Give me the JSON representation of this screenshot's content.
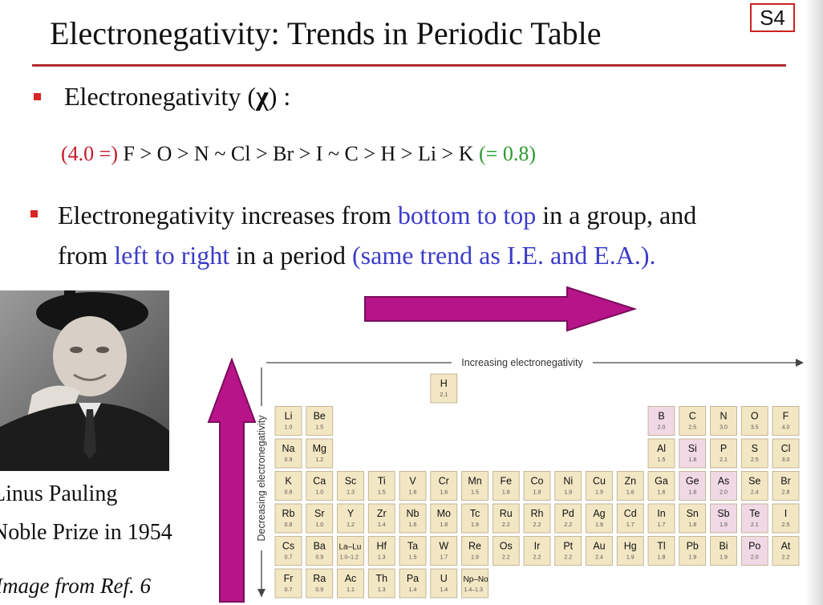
{
  "slide_number": "S4",
  "title": "Electronegativity: Trends in Periodic Table",
  "bullet1": {
    "label": "Electronegativity (",
    "symbol": "χ",
    "suffix": ")  :"
  },
  "series": {
    "start": "(4.0 =)",
    "sequence": " F > O > N ~ Cl > Br > I ~  C > H > Li > K ",
    "end": "(= 0.8)"
  },
  "bullet2": {
    "p1": "Electronegativity increases from ",
    "p2": "bottom to top",
    "p3": " in a group, and",
    "p4": "from ",
    "p5": "left to right",
    "p6": " in a period ",
    "p7": "(same trend as I.E. and E.A.)."
  },
  "portrait": {
    "caption_name": "Linus Pauling",
    "caption_prize": "Noble Prize in 1954",
    "caption_source": "Image from Ref. 6"
  },
  "table": {
    "x_axis_label": "Increasing electronegativity",
    "y_axis_label": "Decreasing electronegativity",
    "colors": {
      "main": "#f3e6c3",
      "pink": "#f0d8e4",
      "border": "#b9a988",
      "arrow": "#b8148a"
    },
    "elements": [
      {
        "sym": "H",
        "en": "2.1",
        "row": 0,
        "col": 5,
        "color": "main"
      },
      {
        "sym": "Li",
        "en": "1.0",
        "row": 1,
        "col": 0,
        "color": "main"
      },
      {
        "sym": "Be",
        "en": "1.5",
        "row": 1,
        "col": 1,
        "color": "main"
      },
      {
        "sym": "B",
        "en": "2.0",
        "row": 1,
        "col": 12,
        "color": "pink"
      },
      {
        "sym": "C",
        "en": "2.5",
        "row": 1,
        "col": 13,
        "color": "main"
      },
      {
        "sym": "N",
        "en": "3.0",
        "row": 1,
        "col": 14,
        "color": "main"
      },
      {
        "sym": "O",
        "en": "3.5",
        "row": 1,
        "col": 15,
        "color": "main"
      },
      {
        "sym": "F",
        "en": "4.0",
        "row": 1,
        "col": 16,
        "color": "main"
      },
      {
        "sym": "Na",
        "en": "0.9",
        "row": 2,
        "col": 0,
        "color": "main"
      },
      {
        "sym": "Mg",
        "en": "1.2",
        "row": 2,
        "col": 1,
        "color": "main"
      },
      {
        "sym": "Al",
        "en": "1.5",
        "row": 2,
        "col": 12,
        "color": "main"
      },
      {
        "sym": "Si",
        "en": "1.8",
        "row": 2,
        "col": 13,
        "color": "pink"
      },
      {
        "sym": "P",
        "en": "2.1",
        "row": 2,
        "col": 14,
        "color": "main"
      },
      {
        "sym": "S",
        "en": "2.5",
        "row": 2,
        "col": 15,
        "color": "main"
      },
      {
        "sym": "Cl",
        "en": "3.0",
        "row": 2,
        "col": 16,
        "color": "main"
      },
      {
        "sym": "K",
        "en": "0.8",
        "row": 3,
        "col": 0,
        "color": "main"
      },
      {
        "sym": "Ca",
        "en": "1.0",
        "row": 3,
        "col": 1,
        "color": "main"
      },
      {
        "sym": "Sc",
        "en": "1.3",
        "row": 3,
        "col": 2,
        "color": "main"
      },
      {
        "sym": "Ti",
        "en": "1.5",
        "row": 3,
        "col": 3,
        "color": "main"
      },
      {
        "sym": "V",
        "en": "1.6",
        "row": 3,
        "col": 4,
        "color": "main"
      },
      {
        "sym": "Cr",
        "en": "1.6",
        "row": 3,
        "col": 5,
        "color": "main"
      },
      {
        "sym": "Mn",
        "en": "1.5",
        "row": 3,
        "col": 6,
        "color": "main"
      },
      {
        "sym": "Fe",
        "en": "1.8",
        "row": 3,
        "col": 7,
        "color": "main"
      },
      {
        "sym": "Co",
        "en": "1.9",
        "row": 3,
        "col": 8,
        "color": "main"
      },
      {
        "sym": "Ni",
        "en": "1.9",
        "row": 3,
        "col": 9,
        "color": "main"
      },
      {
        "sym": "Cu",
        "en": "1.9",
        "row": 3,
        "col": 10,
        "color": "main"
      },
      {
        "sym": "Zn",
        "en": "1.6",
        "row": 3,
        "col": 11,
        "color": "main"
      },
      {
        "sym": "Ga",
        "en": "1.6",
        "row": 3,
        "col": 12,
        "color": "main"
      },
      {
        "sym": "Ge",
        "en": "1.8",
        "row": 3,
        "col": 13,
        "color": "pink"
      },
      {
        "sym": "As",
        "en": "2.0",
        "row": 3,
        "col": 14,
        "color": "pink"
      },
      {
        "sym": "Se",
        "en": "2.4",
        "row": 3,
        "col": 15,
        "color": "main"
      },
      {
        "sym": "Br",
        "en": "2.8",
        "row": 3,
        "col": 16,
        "color": "main"
      },
      {
        "sym": "Rb",
        "en": "0.8",
        "row": 4,
        "col": 0,
        "color": "main"
      },
      {
        "sym": "Sr",
        "en": "1.0",
        "row": 4,
        "col": 1,
        "color": "main"
      },
      {
        "sym": "Y",
        "en": "1.2",
        "row": 4,
        "col": 2,
        "color": "main"
      },
      {
        "sym": "Zr",
        "en": "1.4",
        "row": 4,
        "col": 3,
        "color": "main"
      },
      {
        "sym": "Nb",
        "en": "1.6",
        "row": 4,
        "col": 4,
        "color": "main"
      },
      {
        "sym": "Mo",
        "en": "1.8",
        "row": 4,
        "col": 5,
        "color": "main"
      },
      {
        "sym": "Tc",
        "en": "1.9",
        "row": 4,
        "col": 6,
        "color": "main"
      },
      {
        "sym": "Ru",
        "en": "2.2",
        "row": 4,
        "col": 7,
        "color": "main"
      },
      {
        "sym": "Rh",
        "en": "2.2",
        "row": 4,
        "col": 8,
        "color": "main"
      },
      {
        "sym": "Pd",
        "en": "2.2",
        "row": 4,
        "col": 9,
        "color": "main"
      },
      {
        "sym": "Ag",
        "en": "1.9",
        "row": 4,
        "col": 10,
        "color": "main"
      },
      {
        "sym": "Cd",
        "en": "1.7",
        "row": 4,
        "col": 11,
        "color": "main"
      },
      {
        "sym": "In",
        "en": "1.7",
        "row": 4,
        "col": 12,
        "color": "main"
      },
      {
        "sym": "Sn",
        "en": "1.8",
        "row": 4,
        "col": 13,
        "color": "main"
      },
      {
        "sym": "Sb",
        "en": "1.9",
        "row": 4,
        "col": 14,
        "color": "pink"
      },
      {
        "sym": "Te",
        "en": "2.1",
        "row": 4,
        "col": 15,
        "color": "pink"
      },
      {
        "sym": "I",
        "en": "2.5",
        "row": 4,
        "col": 16,
        "color": "main"
      },
      {
        "sym": "Cs",
        "en": "0.7",
        "row": 5,
        "col": 0,
        "color": "main"
      },
      {
        "sym": "Ba",
        "en": "0.9",
        "row": 5,
        "col": 1,
        "color": "main"
      },
      {
        "sym": "La–Lu",
        "en": "1.0–1.2",
        "row": 5,
        "col": 2,
        "color": "main"
      },
      {
        "sym": "Hf",
        "en": "1.3",
        "row": 5,
        "col": 3,
        "color": "main"
      },
      {
        "sym": "Ta",
        "en": "1.5",
        "row": 5,
        "col": 4,
        "color": "main"
      },
      {
        "sym": "W",
        "en": "1.7",
        "row": 5,
        "col": 5,
        "color": "main"
      },
      {
        "sym": "Re",
        "en": "1.9",
        "row": 5,
        "col": 6,
        "color": "main"
      },
      {
        "sym": "Os",
        "en": "2.2",
        "row": 5,
        "col": 7,
        "color": "main"
      },
      {
        "sym": "Ir",
        "en": "2.2",
        "row": 5,
        "col": 8,
        "color": "main"
      },
      {
        "sym": "Pt",
        "en": "2.2",
        "row": 5,
        "col": 9,
        "color": "main"
      },
      {
        "sym": "Au",
        "en": "2.4",
        "row": 5,
        "col": 10,
        "color": "main"
      },
      {
        "sym": "Hg",
        "en": "1.9",
        "row": 5,
        "col": 11,
        "color": "main"
      },
      {
        "sym": "Tl",
        "en": "1.8",
        "row": 5,
        "col": 12,
        "color": "main"
      },
      {
        "sym": "Pb",
        "en": "1.9",
        "row": 5,
        "col": 13,
        "color": "main"
      },
      {
        "sym": "Bi",
        "en": "1.9",
        "row": 5,
        "col": 14,
        "color": "main"
      },
      {
        "sym": "Po",
        "en": "2.0",
        "row": 5,
        "col": 15,
        "color": "pink"
      },
      {
        "sym": "At",
        "en": "2.2",
        "row": 5,
        "col": 16,
        "color": "main"
      },
      {
        "sym": "Fr",
        "en": "0.7",
        "row": 6,
        "col": 0,
        "color": "main"
      },
      {
        "sym": "Ra",
        "en": "0.9",
        "row": 6,
        "col": 1,
        "color": "main"
      },
      {
        "sym": "Ac",
        "en": "1.1",
        "row": 6,
        "col": 2,
        "color": "main"
      },
      {
        "sym": "Th",
        "en": "1.3",
        "row": 6,
        "col": 3,
        "color": "main"
      },
      {
        "sym": "Pa",
        "en": "1.4",
        "row": 6,
        "col": 4,
        "color": "main"
      },
      {
        "sym": "U",
        "en": "1.4",
        "row": 6,
        "col": 5,
        "color": "main"
      },
      {
        "sym": "Np–No",
        "en": "1.4–1.3",
        "row": 6,
        "col": 6,
        "color": "main"
      }
    ]
  }
}
